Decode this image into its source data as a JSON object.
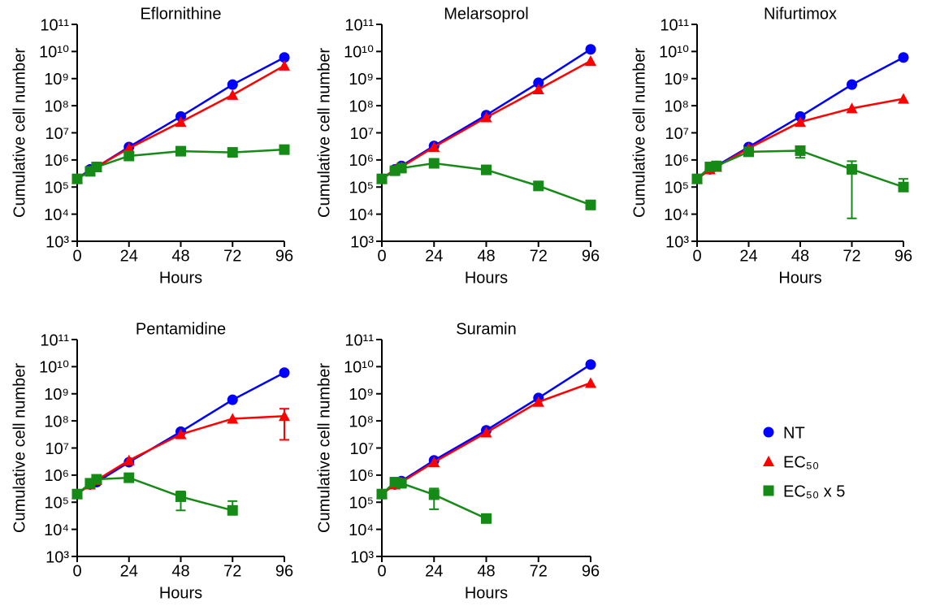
{
  "chart_data": [
    {
      "type": "line",
      "title": "Eflornithine",
      "x_label": "Hours",
      "y_label": "Cumulative cell number",
      "log_y": true,
      "xlim": [
        0,
        96
      ],
      "xticks": [
        0,
        24,
        48,
        72,
        96
      ],
      "x": [
        0,
        6,
        9,
        24,
        48,
        72,
        96
      ],
      "ylim": [
        1000,
        100000000000
      ],
      "yticks": [
        {
          "value": 1000,
          "label": "10³"
        },
        {
          "value": 10000,
          "label": "10⁴"
        },
        {
          "value": 100000,
          "label": "10⁵"
        },
        {
          "value": 1000000,
          "label": "10⁶"
        },
        {
          "value": 10000000,
          "label": "10⁷"
        },
        {
          "value": 100000000,
          "label": "10⁸"
        },
        {
          "value": 1000000000,
          "label": "10⁹"
        },
        {
          "value": 10000000000,
          "label": "10¹⁰"
        },
        {
          "value": 100000000000,
          "label": "10¹¹"
        }
      ],
      "series": [
        {
          "name": "NT",
          "color": "#0000ff",
          "marker": "circle",
          "values": [
            200000,
            450000,
            550000,
            3000000,
            40000000,
            600000000,
            6000000000
          ]
        },
        {
          "name": "EC₅₀",
          "color": "#ff0000",
          "marker": "triangle",
          "values": [
            200000,
            400000,
            550000,
            2700000,
            25000000,
            250000000,
            3000000000
          ]
        },
        {
          "name": "EC₅₀ x 5",
          "color": "#168a16",
          "marker": "square",
          "values": [
            200000,
            380000,
            550000,
            1400000,
            2100000,
            1900000,
            2400000
          ],
          "err_low": [
            null,
            null,
            null,
            null,
            null,
            1500000,
            null
          ],
          "err_high": [
            null,
            null,
            null,
            null,
            null,
            2400000,
            null
          ]
        }
      ]
    },
    {
      "type": "line",
      "title": "Melarsoprol",
      "x_label": "Hours",
      "y_label": "Cumulative cell number",
      "log_y": true,
      "xlim": [
        0,
        96
      ],
      "xticks": [
        0,
        24,
        48,
        72,
        96
      ],
      "x": [
        0,
        6,
        9,
        24,
        48,
        72,
        96
      ],
      "ylim": [
        1000,
        100000000000
      ],
      "yticks": [
        {
          "value": 1000,
          "label": "10³"
        },
        {
          "value": 10000,
          "label": "10⁴"
        },
        {
          "value": 100000,
          "label": "10⁵"
        },
        {
          "value": 1000000,
          "label": "10⁶"
        },
        {
          "value": 10000000,
          "label": "10⁷"
        },
        {
          "value": 100000000,
          "label": "10⁸"
        },
        {
          "value": 1000000000,
          "label": "10⁹"
        },
        {
          "value": 10000000000,
          "label": "10¹⁰"
        },
        {
          "value": 100000000000,
          "label": "10¹¹"
        }
      ],
      "series": [
        {
          "color": "#0000ff",
          "marker": "circle",
          "values": [
            200000,
            450000,
            600000,
            3300000,
            45000000,
            700000000,
            12000000000
          ]
        },
        {
          "color": "#ff0000",
          "marker": "triangle",
          "values": [
            200000,
            450000,
            550000,
            3000000,
            37000000,
            400000000,
            4500000000
          ]
        },
        {
          "color": "#168a16",
          "marker": "square",
          "values": [
            200000,
            400000,
            500000,
            750000,
            430000,
            110000,
            22000
          ],
          "err_low": [
            null,
            null,
            null,
            null,
            null,
            80000,
            15000
          ],
          "err_high": [
            null,
            null,
            null,
            null,
            null,
            140000,
            30000
          ]
        }
      ]
    },
    {
      "type": "line",
      "title": "Nifurtimox",
      "x_label": "Hours",
      "y_label": "Cumulative cell number",
      "log_y": true,
      "xlim": [
        0,
        96
      ],
      "xticks": [
        0,
        24,
        48,
        72,
        96
      ],
      "x": [
        0,
        6,
        9,
        24,
        48,
        72,
        96
      ],
      "ylim": [
        1000,
        100000000000
      ],
      "yticks": [
        {
          "value": 1000,
          "label": "10³"
        },
        {
          "value": 10000,
          "label": "10⁴"
        },
        {
          "value": 100000,
          "label": "10⁵"
        },
        {
          "value": 1000000,
          "label": "10⁶"
        },
        {
          "value": 10000000,
          "label": "10⁷"
        },
        {
          "value": 100000000,
          "label": "10⁸"
        },
        {
          "value": 1000000000,
          "label": "10⁹"
        },
        {
          "value": 10000000000,
          "label": "10¹⁰"
        },
        {
          "value": 100000000000,
          "label": "10¹¹"
        }
      ],
      "series": [
        {
          "color": "#0000ff",
          "marker": "circle",
          "values": [
            200000,
            450000,
            600000,
            3000000,
            40000000,
            600000000,
            6000000000
          ]
        },
        {
          "color": "#ff0000",
          "marker": "triangle",
          "values": [
            200000,
            450000,
            550000,
            2700000,
            25000000,
            80000000,
            180000000
          ]
        },
        {
          "color": "#168a16",
          "marker": "square",
          "values": [
            200000,
            550000,
            600000,
            2000000,
            2200000,
            450000,
            100000
          ],
          "err_low": [
            null,
            null,
            null,
            null,
            1200000,
            7000,
            70000
          ],
          "err_high": [
            null,
            null,
            null,
            null,
            3000000,
            900000,
            200000
          ]
        }
      ]
    },
    {
      "type": "line",
      "title": "Pentamidine",
      "x_label": "Hours",
      "y_label": "Cumulative cell number",
      "log_y": true,
      "xlim": [
        0,
        96
      ],
      "xticks": [
        0,
        24,
        48,
        72,
        96
      ],
      "x": [
        0,
        6,
        9,
        24,
        48,
        72,
        96
      ],
      "ylim": [
        1000,
        100000000000
      ],
      "yticks": [
        {
          "value": 1000,
          "label": "10³"
        },
        {
          "value": 10000,
          "label": "10⁴"
        },
        {
          "value": 100000,
          "label": "10⁵"
        },
        {
          "value": 1000000,
          "label": "10⁶"
        },
        {
          "value": 10000000,
          "label": "10⁷"
        },
        {
          "value": 100000000,
          "label": "10⁸"
        },
        {
          "value": 1000000000,
          "label": "10⁹"
        },
        {
          "value": 10000000000,
          "label": "10¹⁰"
        },
        {
          "value": 100000000000,
          "label": "10¹¹"
        }
      ],
      "series": [
        {
          "color": "#0000ff",
          "marker": "circle",
          "values": [
            200000,
            450000,
            550000,
            3000000,
            40000000,
            600000000,
            6000000000
          ]
        },
        {
          "color": "#ff0000",
          "marker": "triangle",
          "values": [
            200000,
            450000,
            650000,
            3500000,
            32000000,
            120000000,
            150000000
          ],
          "err_low": [
            null,
            null,
            null,
            null,
            null,
            null,
            20000000
          ],
          "err_high": [
            null,
            null,
            null,
            null,
            null,
            null,
            280000000
          ]
        },
        {
          "color": "#168a16",
          "marker": "square",
          "values": [
            200000,
            500000,
            700000,
            800000,
            160000,
            50000,
            null
          ],
          "err_low": [
            null,
            null,
            null,
            null,
            50000,
            35000,
            null
          ],
          "err_high": [
            null,
            null,
            null,
            null,
            250000,
            110000,
            null
          ]
        }
      ]
    },
    {
      "type": "line",
      "title": "Suramin",
      "x_label": "Hours",
      "y_label": "Cumulative cell number",
      "log_y": true,
      "xlim": [
        0,
        96
      ],
      "xticks": [
        0,
        24,
        48,
        72,
        96
      ],
      "x": [
        0,
        6,
        9,
        24,
        48,
        72,
        96
      ],
      "ylim": [
        1000,
        100000000000
      ],
      "yticks": [
        {
          "value": 1000,
          "label": "10³"
        },
        {
          "value": 10000,
          "label": "10⁴"
        },
        {
          "value": 100000,
          "label": "10⁵"
        },
        {
          "value": 1000000,
          "label": "10⁶"
        },
        {
          "value": 10000000,
          "label": "10⁷"
        },
        {
          "value": 100000000,
          "label": "10⁸"
        },
        {
          "value": 1000000000,
          "label": "10⁹"
        },
        {
          "value": 10000000000,
          "label": "10¹⁰"
        },
        {
          "value": 100000000000,
          "label": "10¹¹"
        }
      ],
      "series": [
        {
          "color": "#0000ff",
          "marker": "circle",
          "values": [
            200000,
            450000,
            600000,
            3500000,
            45000000,
            700000000,
            12000000000
          ]
        },
        {
          "color": "#ff0000",
          "marker": "triangle",
          "values": [
            200000,
            450000,
            550000,
            3000000,
            37000000,
            500000000,
            2500000000
          ]
        },
        {
          "color": "#168a16",
          "marker": "square",
          "values": [
            200000,
            550000,
            500000,
            190000,
            25000,
            null,
            null
          ],
          "err_low": [
            null,
            null,
            null,
            55000,
            18000,
            null,
            null
          ],
          "err_high": [
            null,
            null,
            null,
            320000,
            30000,
            null,
            null
          ]
        }
      ]
    }
  ]
}
